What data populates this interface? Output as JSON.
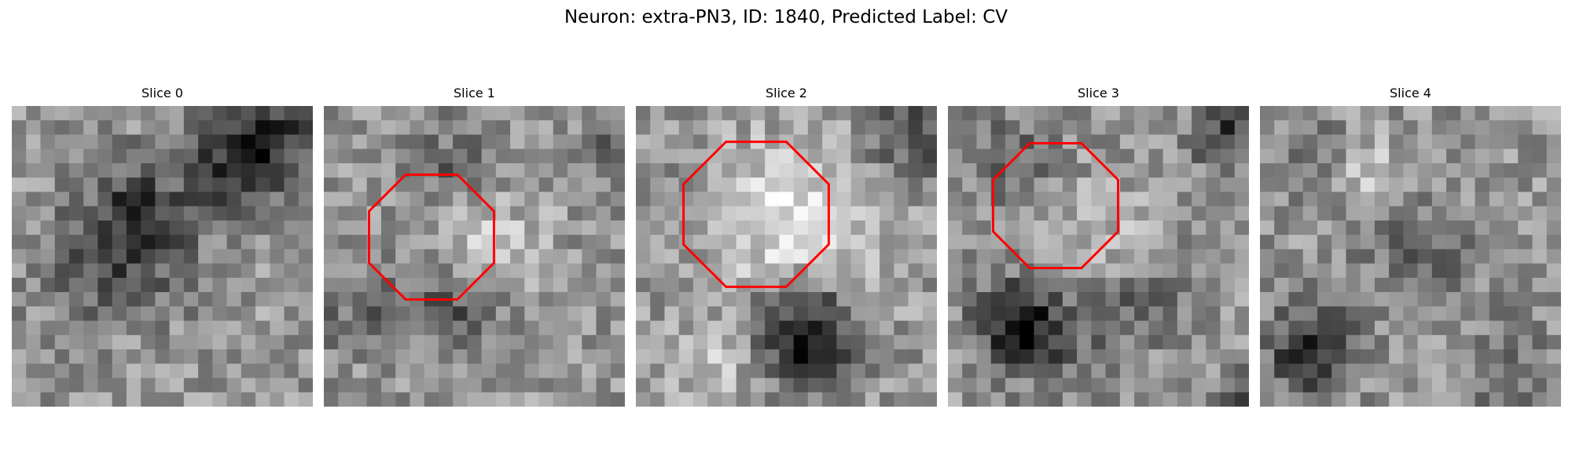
{
  "figure": {
    "title": "Neuron: extra-PN3, ID: 1840, Predicted Label: CV"
  },
  "colors": {
    "background": "#ffffff",
    "outline": "#ff0000"
  },
  "slices": [
    {
      "title": "Slice 0",
      "image": "grayscale-microscopy-patch",
      "has_outline": false
    },
    {
      "title": "Slice 1",
      "image": "grayscale-microscopy-patch",
      "has_outline": true
    },
    {
      "title": "Slice 2",
      "image": "grayscale-microscopy-patch",
      "has_outline": true
    },
    {
      "title": "Slice 3",
      "image": "grayscale-microscopy-patch",
      "has_outline": true
    },
    {
      "title": "Slice 4",
      "image": "grayscale-microscopy-patch",
      "has_outline": false
    }
  ]
}
